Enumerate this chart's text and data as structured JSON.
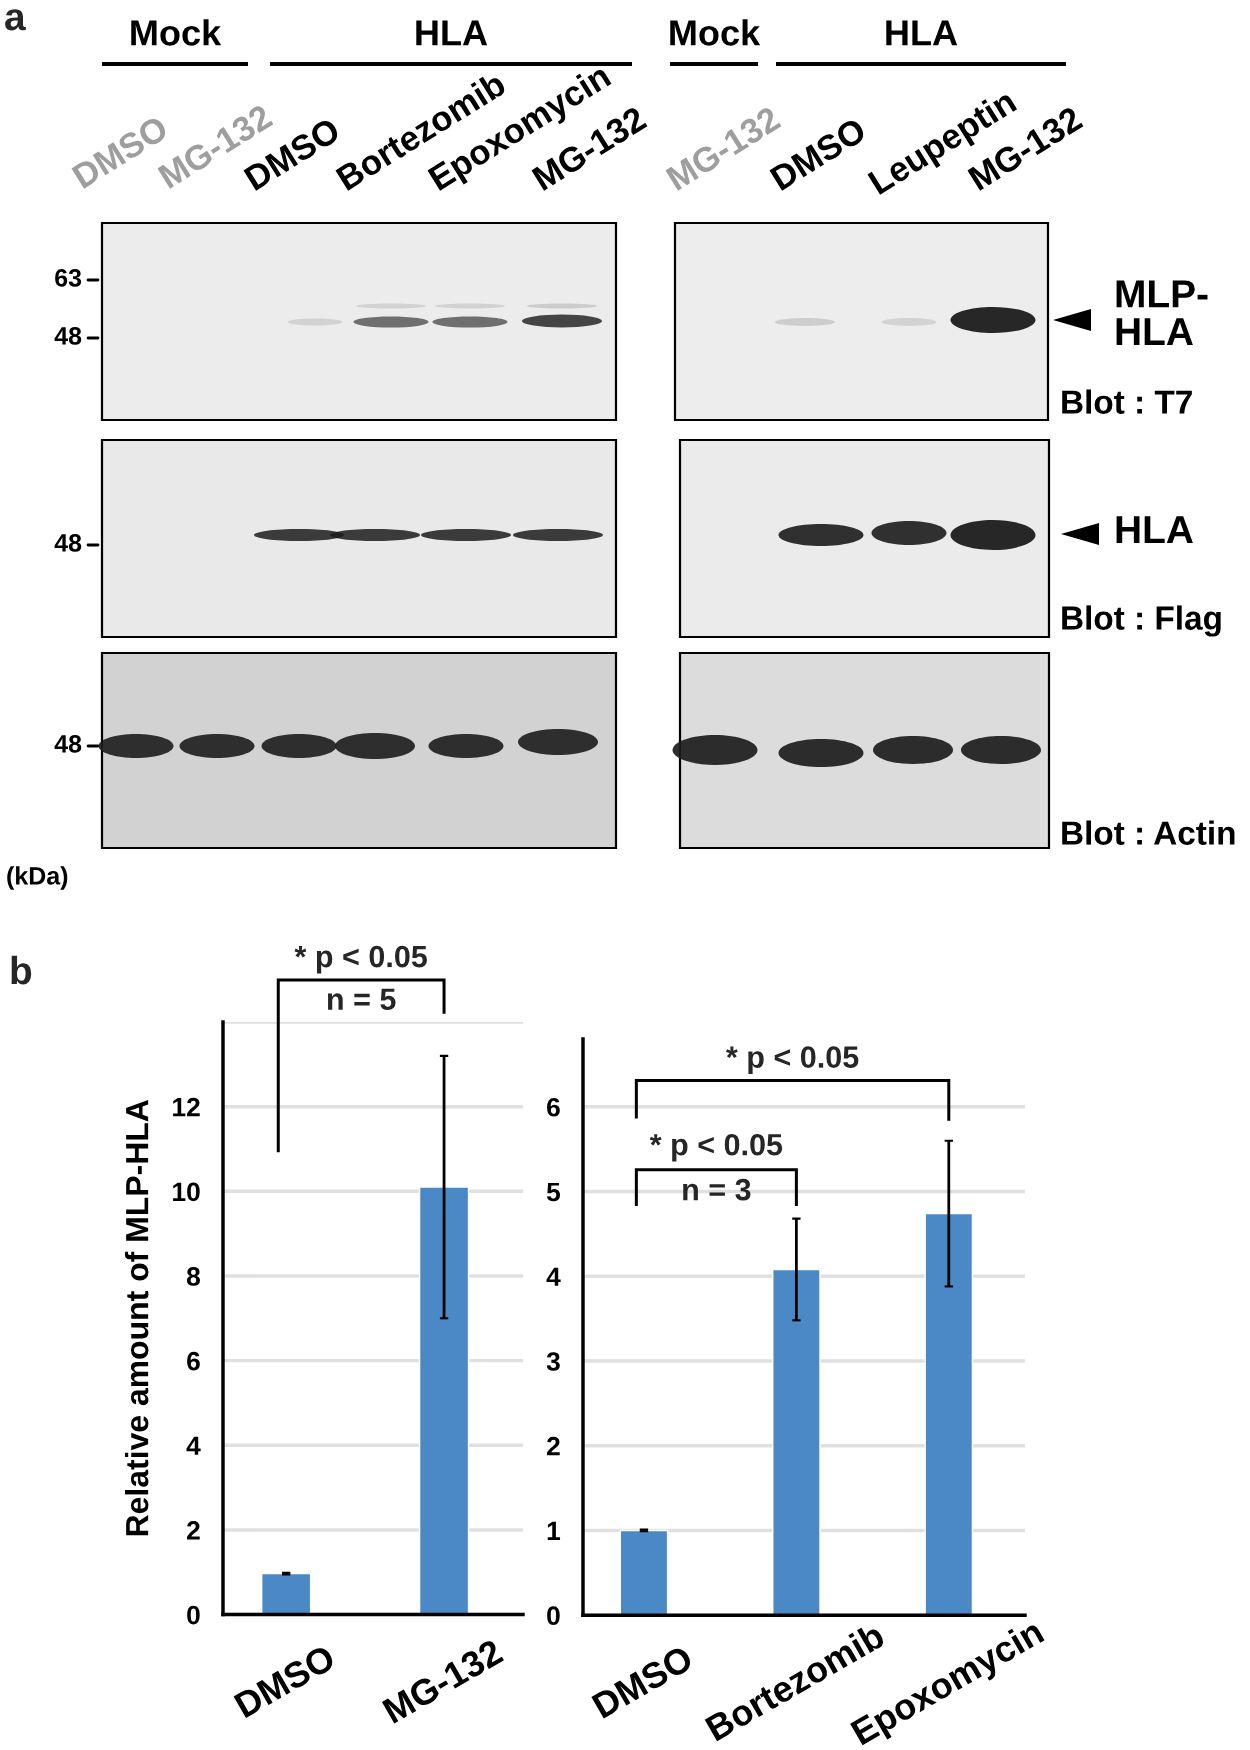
{
  "chart_data": [
    {
      "type": "other",
      "title": "a",
      "annotations": [
        "Mock",
        "HLA",
        "Mock",
        "HLA",
        "DMSO",
        "MG-132",
        "DMSO",
        "Bortezomib",
        "Epoxomycin",
        "MG-132",
        "MG-132",
        "DMSO",
        "Leupeptin",
        "MG-132",
        "63",
        "48",
        "48",
        "48",
        "(kDa)",
        "MLP-\nHLA",
        "HLA",
        "Blot : T7",
        "Blot : Flag",
        "Blot : Actin"
      ]
    },
    {
      "type": "bar",
      "title": "b",
      "ylabel": "Relative amount of MLP-HLA",
      "categories": [
        "DMSO",
        "MG-132"
      ],
      "values": [
        0.97,
        10.1
      ],
      "errors": [
        0.02,
        3.1
      ],
      "color": "#4a89c5",
      "ylim": [
        0,
        14
      ],
      "yticks": [
        0,
        2,
        4,
        6,
        8,
        10,
        12,
        {
          "value": 14,
          "label": null
        }
      ],
      "grid": "y",
      "annotations": [
        "* p < 0.05",
        "n = 5"
      ]
    },
    {
      "type": "bar",
      "categories": [
        "DMSO",
        "Bortezomib",
        "Epoxomycin"
      ],
      "values": [
        1,
        4.08,
        4.74
      ],
      "errors": [
        0.01,
        0.6,
        0.86
      ],
      "color": "#4a89c5",
      "ylim": [
        0,
        6.8
      ],
      "yticks": [
        0,
        1,
        2,
        3,
        4,
        5,
        6
      ],
      "grid": "y",
      "annotations": [
        "* p < 0.05",
        "* p < 0.05",
        "n = 3"
      ]
    }
  ]
}
